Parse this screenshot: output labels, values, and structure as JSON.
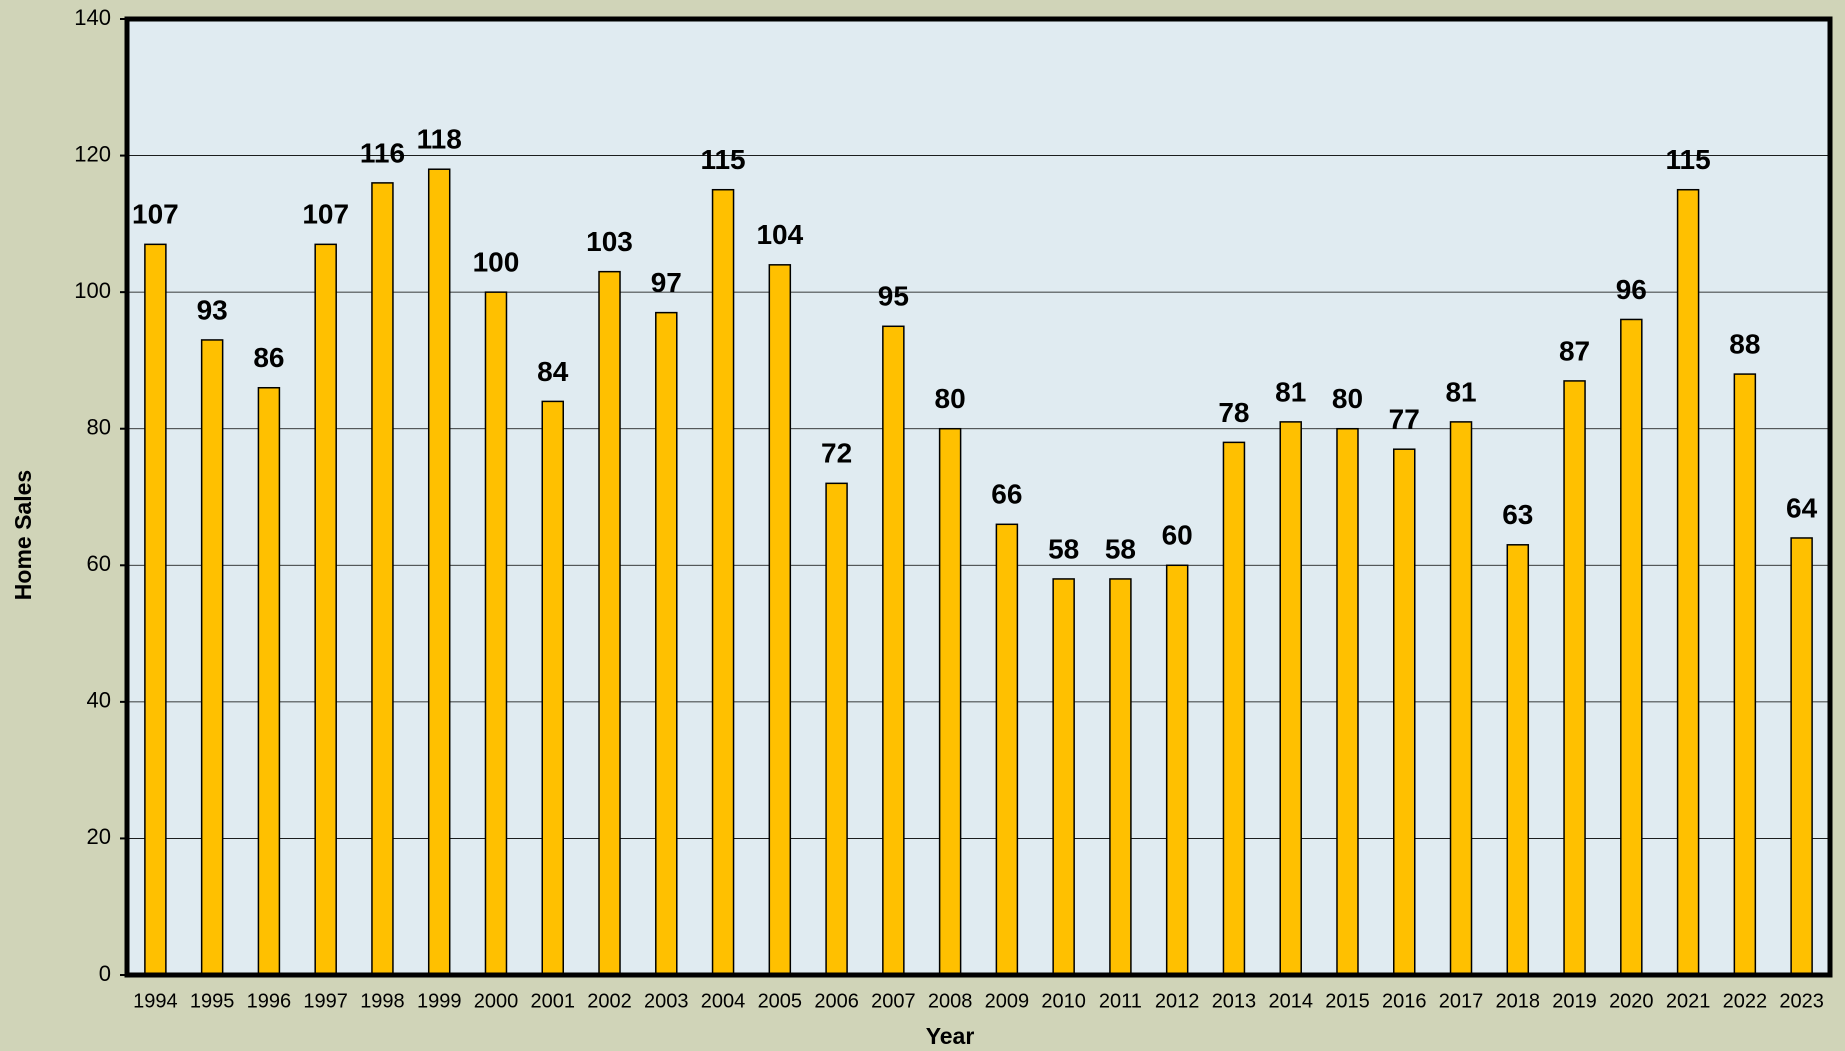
{
  "chart_data": {
    "type": "bar",
    "categories": [
      "1994",
      "1995",
      "1996",
      "1997",
      "1998",
      "1999",
      "2000",
      "2001",
      "2002",
      "2003",
      "2004",
      "2005",
      "2006",
      "2007",
      "2008",
      "2009",
      "2010",
      "2011",
      "2012",
      "2013",
      "2014",
      "2015",
      "2016",
      "2017",
      "2018",
      "2019",
      "2020",
      "2021",
      "2022",
      "2023"
    ],
    "values": [
      107,
      93,
      86,
      107,
      116,
      118,
      100,
      84,
      103,
      97,
      115,
      104,
      72,
      95,
      80,
      66,
      58,
      58,
      60,
      78,
      81,
      80,
      77,
      81,
      63,
      87,
      96,
      115,
      88,
      64
    ],
    "color": "#ffc000",
    "ylim": [
      0,
      140
    ],
    "yticks": [
      0,
      20,
      40,
      60,
      80,
      100,
      120,
      140
    ],
    "grid": true,
    "y_label": "Home Sales",
    "x_label": "Year"
  }
}
